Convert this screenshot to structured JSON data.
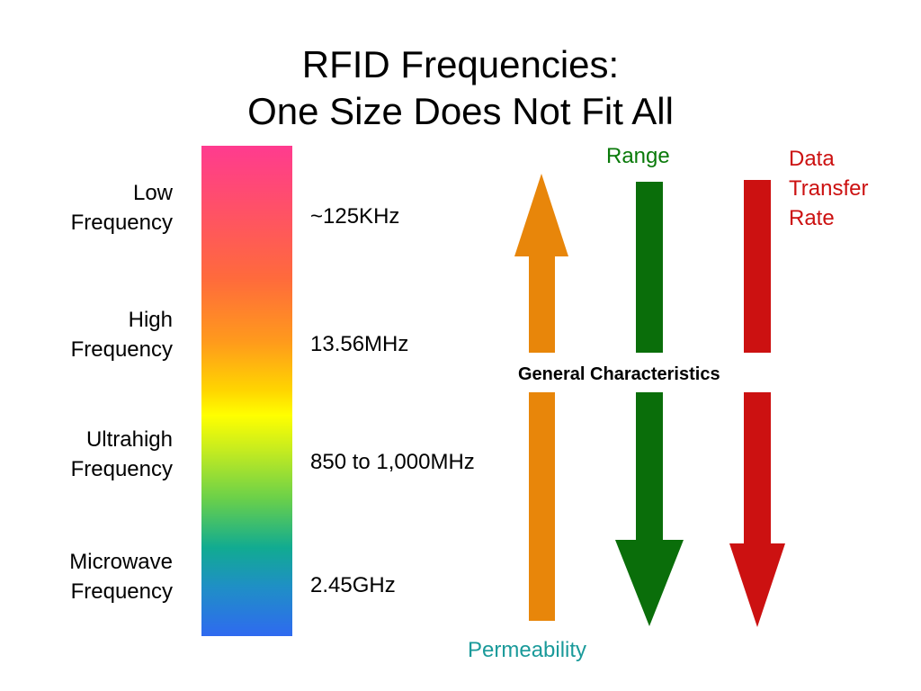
{
  "title": {
    "line1": "RFID Frequencies:",
    "line2": "One Size Does Not Fit All"
  },
  "bands": [
    {
      "name_line1": "Low",
      "name_line2": "Frequency",
      "frequency": "~125KHz"
    },
    {
      "name_line1": "High",
      "name_line2": "Frequency",
      "frequency": "13.56MHz"
    },
    {
      "name_line1": "Ultrahigh",
      "name_line2": "Frequency",
      "frequency": "850 to 1,000MHz"
    },
    {
      "name_line1": "Microwave",
      "name_line2": "Frequency",
      "frequency": "2.45GHz"
    }
  ],
  "characteristics": {
    "heading": "General Characteristics",
    "permeability": {
      "label": "Permeability",
      "color": "#e8860a",
      "direction": "up"
    },
    "range": {
      "label": "Range",
      "color": "#0a6e0a",
      "direction": "down"
    },
    "data_rate": {
      "label": "Data Transfer Rate",
      "color": "#cc1111",
      "direction": "down"
    }
  },
  "colors": {
    "range_text": "#0a7a0a",
    "rate_text": "#cc1111",
    "permeability_text": "#1a9a9a"
  }
}
